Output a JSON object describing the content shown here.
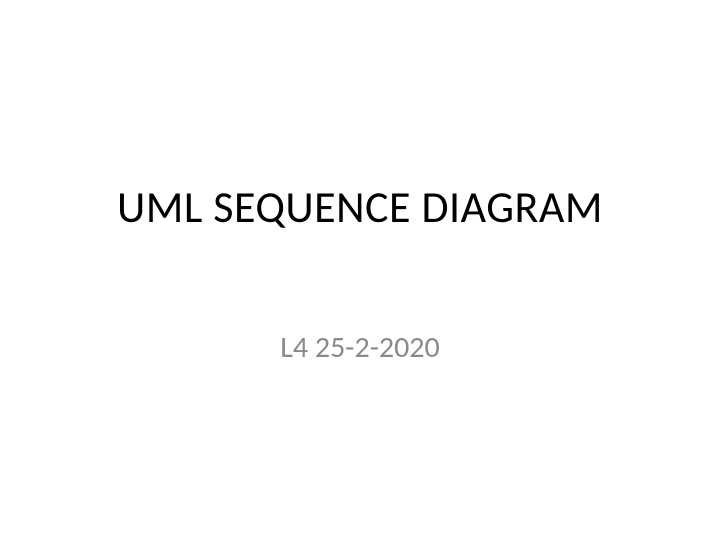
{
  "slide": {
    "title": "UML SEQUENCE DIAGRAM",
    "subtitle": "L4 25-2-2020",
    "title_color": "#000000",
    "subtitle_color": "#8a8a8a",
    "background_color": "#ffffff",
    "title_fontsize": 44,
    "subtitle_fontsize": 30
  }
}
